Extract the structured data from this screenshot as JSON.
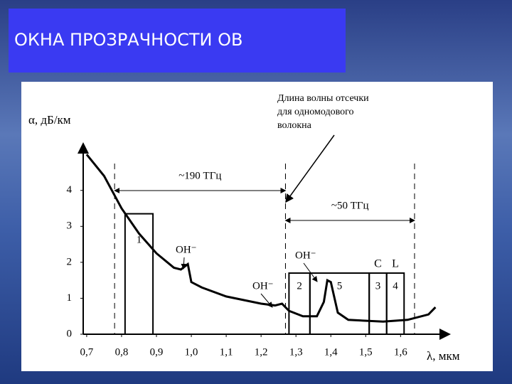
{
  "chart_data": {
    "type": "line",
    "title": "ОКНА ПРОЗРАЧНОСТИ ОВ",
    "ylabel": "α, дБ/км",
    "xlabel": "λ, мкм",
    "color": "#000000",
    "x": [
      0.7,
      0.75,
      0.8,
      0.85,
      0.9,
      0.95,
      0.97,
      0.99,
      1.0,
      1.03,
      1.1,
      1.2,
      1.24,
      1.26,
      1.28,
      1.32,
      1.36,
      1.38,
      1.39,
      1.4,
      1.42,
      1.45,
      1.55,
      1.62,
      1.68,
      1.7
    ],
    "values": [
      5.0,
      4.4,
      3.5,
      2.8,
      2.25,
      1.85,
      1.8,
      1.95,
      1.45,
      1.3,
      1.05,
      0.85,
      0.8,
      0.85,
      0.65,
      0.5,
      0.5,
      0.9,
      1.5,
      1.45,
      0.6,
      0.4,
      0.35,
      0.4,
      0.55,
      0.75
    ],
    "xlim": [
      0.69,
      1.74
    ],
    "ylim": [
      0,
      5.3
    ],
    "xticks": [
      {
        "value": 0.7,
        "label": "0,7"
      },
      {
        "value": 0.8,
        "label": "0,8"
      },
      {
        "value": 0.9,
        "label": "0,9"
      },
      {
        "value": 1.0,
        "label": "1,0"
      },
      {
        "value": 1.1,
        "label": "1,1"
      },
      {
        "value": 1.2,
        "label": "1,2"
      },
      {
        "value": 1.3,
        "label": "1,3"
      },
      {
        "value": 1.4,
        "label": "1,4"
      },
      {
        "value": 1.5,
        "label": "1,5"
      },
      {
        "value": 1.6,
        "label": "1,6"
      }
    ],
    "yticks": [
      0,
      1,
      2,
      3,
      4
    ],
    "windows": [
      {
        "label": "1",
        "x0": 0.81,
        "x1": 0.89,
        "top": 3.35
      },
      {
        "label": "2",
        "x0": 1.28,
        "x1": 1.34,
        "top": 1.7
      },
      {
        "label": "5",
        "x0": 1.34,
        "x1": 1.51,
        "top": 1.7
      },
      {
        "label": "3",
        "band": "C",
        "x0": 1.51,
        "x1": 1.56,
        "top": 1.7
      },
      {
        "label": "4",
        "band": "L",
        "x0": 1.56,
        "x1": 1.61,
        "top": 1.7
      }
    ],
    "spans": [
      {
        "label": "~190 ТГц",
        "x0": 0.78,
        "x1": 1.27
      },
      {
        "label": "~50 ТГц",
        "x0": 1.27,
        "x1": 1.64
      }
    ],
    "peak_labels": [
      "ОН⁻",
      "ОН⁻",
      "ОН⁻"
    ],
    "cutoff_note": [
      "Длина волны отсечки",
      "для одномодового",
      "волокна"
    ]
  }
}
